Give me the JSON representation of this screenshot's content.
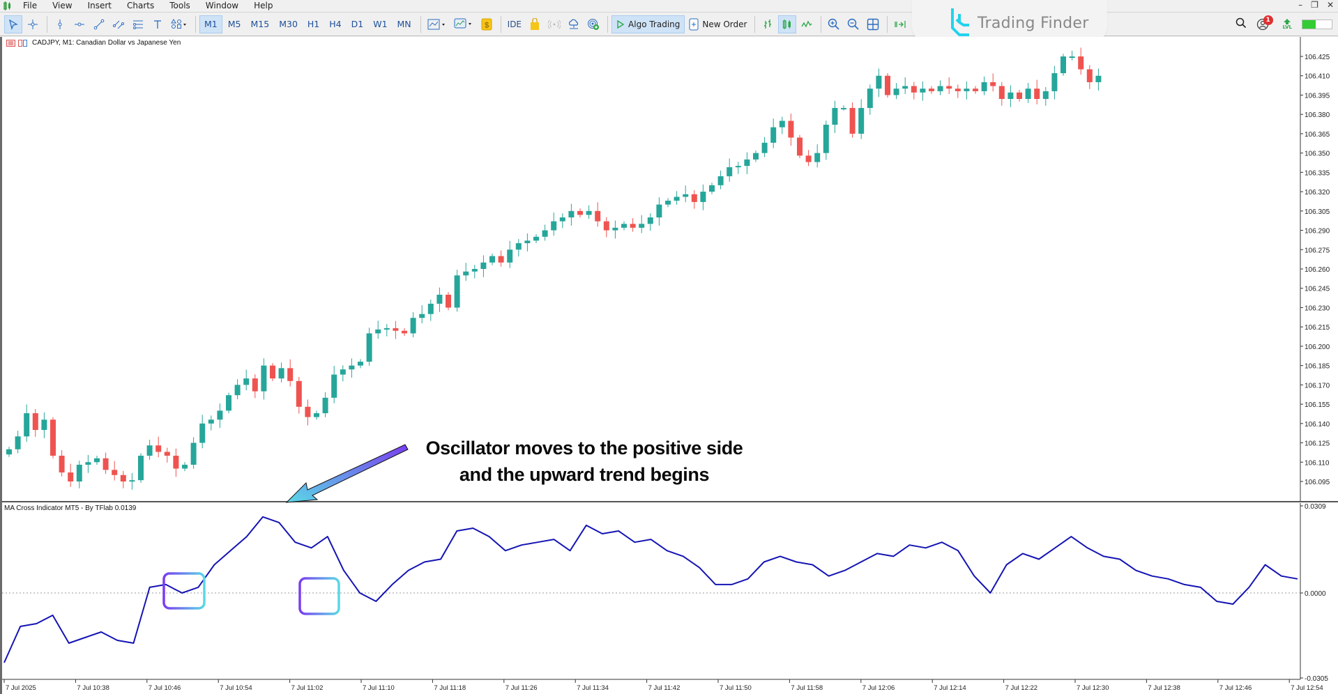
{
  "menu": {
    "items": [
      "File",
      "View",
      "Insert",
      "Charts",
      "Tools",
      "Window",
      "Help"
    ]
  },
  "toolbar": {
    "timeframes": [
      "M1",
      "M5",
      "M15",
      "M30",
      "H1",
      "H4",
      "D1",
      "W1",
      "MN"
    ],
    "active_timeframe": "M1",
    "ide_label": "IDE",
    "algo_trading_label": "Algo Trading",
    "new_order_label": "New Order",
    "notification_count": "1",
    "level_label": "LVL"
  },
  "brand": {
    "name": "Trading Finder"
  },
  "chart": {
    "title": "CADJPY, M1:  Canadian Dollar vs Japanese Yen",
    "symbol": "CADJPY",
    "timeframe": "M1",
    "description": "Canadian Dollar vs Japanese Yen",
    "price_axis": [
      "106.425",
      "106.410",
      "106.395",
      "106.380",
      "106.365",
      "106.350",
      "106.335",
      "106.320",
      "106.305",
      "106.290",
      "106.275",
      "106.260",
      "106.245",
      "106.230",
      "106.215",
      "106.200",
      "106.185",
      "106.170",
      "106.155",
      "106.140",
      "106.125",
      "106.110",
      "106.095"
    ],
    "colors": {
      "bull": "#26a69a",
      "bear": "#ef5350",
      "osc_line": "#1414b4",
      "zero_line": "#9a9a9a"
    }
  },
  "oscillator": {
    "title": "MA Cross Indicator MT5 - By TFlab 0.0139",
    "name": "MA Cross Indicator MT5 - By TFlab",
    "value": "0.0139",
    "axis": [
      "0.0309",
      "0.0000",
      "-0.0305"
    ]
  },
  "time_axis": [
    "7 Jul 2025",
    "7 Jul 10:38",
    "7 Jul 10:46",
    "7 Jul 10:54",
    "7 Jul 11:02",
    "7 Jul 11:10",
    "7 Jul 11:18",
    "7 Jul 11:26",
    "7 Jul 11:34",
    "7 Jul 11:42",
    "7 Jul 11:50",
    "7 Jul 11:58",
    "7 Jul 12:06",
    "7 Jul 12:14",
    "7 Jul 12:22",
    "7 Jul 12:30",
    "7 Jul 12:38",
    "7 Jul 12:46",
    "7 Jul 12:54"
  ],
  "annotation": {
    "line1": "Oscillator moves to the positive side",
    "line2": "and the upward trend begins"
  },
  "chart_data": {
    "type": "candlestick",
    "title": "CADJPY, M1: Canadian Dollar vs Japanese Yen",
    "ylim": [
      106.085,
      106.432
    ],
    "closes": [
      106.12,
      106.13,
      106.148,
      106.135,
      106.143,
      106.115,
      106.102,
      106.095,
      106.108,
      106.11,
      106.113,
      106.104,
      106.1,
      106.095,
      106.096,
      106.115,
      106.123,
      106.118,
      106.115,
      106.105,
      106.108,
      106.125,
      106.14,
      106.143,
      106.15,
      106.162,
      106.17,
      106.175,
      106.165,
      106.185,
      106.175,
      106.183,
      106.173,
      106.153,
      106.145,
      106.148,
      106.16,
      106.178,
      106.182,
      106.185,
      106.188,
      106.21,
      106.213,
      106.214,
      106.212,
      106.21,
      106.222,
      106.225,
      106.233,
      106.24,
      106.23,
      106.255,
      106.258,
      106.26,
      106.265,
      106.27,
      106.265,
      106.275,
      106.28,
      106.282,
      106.285,
      106.29,
      106.297,
      106.3,
      106.305,
      106.302,
      106.305,
      106.297,
      106.29,
      106.292,
      106.295,
      106.292,
      106.295,
      106.3,
      106.31,
      106.313,
      106.316,
      106.318,
      106.312,
      106.32,
      106.325,
      106.332,
      106.339,
      106.34,
      106.345,
      106.35,
      106.358,
      106.37,
      106.375,
      106.362,
      106.348,
      106.343,
      106.35,
      106.372,
      106.385,
      106.385,
      106.365,
      106.385,
      106.4,
      106.41,
      106.395,
      106.4,
      106.402,
      106.397,
      106.4,
      106.398,
      106.402,
      106.4,
      106.398,
      106.4,
      106.398,
      106.405,
      106.402,
      106.392,
      106.397,
      106.392,
      106.4,
      106.392,
      106.398,
      106.412,
      106.425,
      106.425,
      106.415,
      106.405,
      106.41
    ],
    "oscillator_values_approx": [
      -0.025,
      -0.012,
      -0.011,
      -0.008,
      -0.018,
      -0.016,
      -0.014,
      -0.017,
      -0.018,
      0.002,
      0.003,
      0.0,
      0.002,
      0.01,
      0.015,
      0.02,
      0.027,
      0.025,
      0.018,
      0.016,
      0.02,
      0.008,
      0.0,
      -0.003,
      0.003,
      0.008,
      0.011,
      0.012,
      0.022,
      0.023,
      0.02,
      0.015,
      0.017,
      0.018,
      0.019,
      0.015,
      0.024,
      0.021,
      0.022,
      0.018,
      0.019,
      0.015,
      0.013,
      0.009,
      0.003,
      0.003,
      0.005,
      0.011,
      0.013,
      0.011,
      0.01,
      0.006,
      0.008,
      0.011,
      0.014,
      0.013,
      0.017,
      0.016,
      0.018,
      0.015,
      0.006,
      0.0,
      0.01,
      0.014,
      0.012,
      0.016,
      0.02,
      0.016,
      0.013,
      0.012,
      0.008,
      0.006,
      0.005,
      0.003,
      0.002,
      -0.003,
      -0.004,
      0.002,
      0.01,
      0.006,
      0.005
    ],
    "xlabel": "",
    "ylabel": ""
  }
}
